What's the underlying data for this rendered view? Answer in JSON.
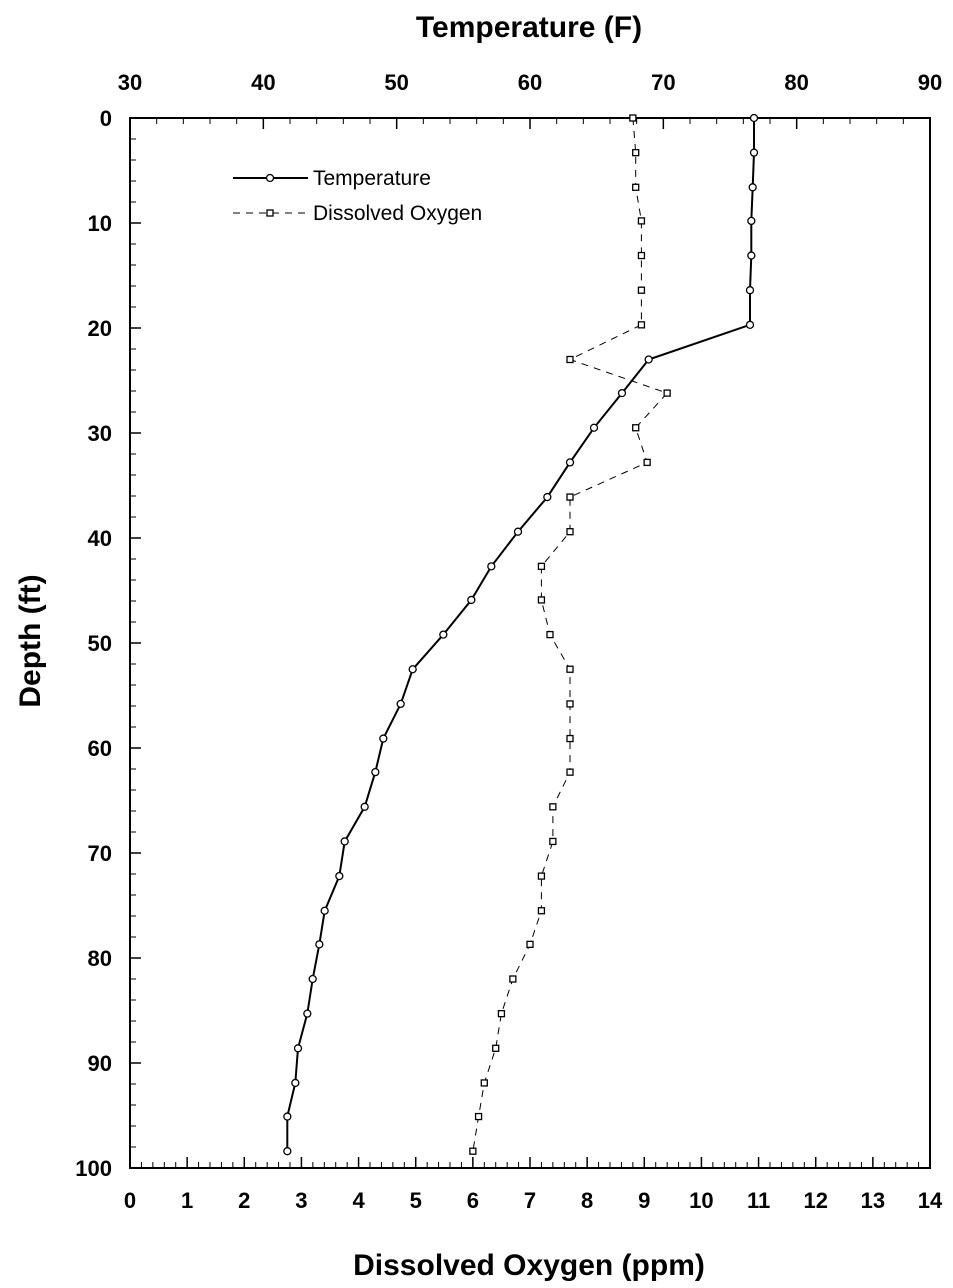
{
  "chart_data": {
    "type": "line",
    "top_axis": {
      "label": "Temperature (F)",
      "range": [
        30,
        90
      ],
      "ticks": [
        "30",
        "40",
        "50",
        "60",
        "70",
        "80",
        "90"
      ]
    },
    "bottom_axis": {
      "label": "Dissolved Oxygen (ppm)",
      "range": [
        0,
        14
      ],
      "ticks": [
        "0",
        "1",
        "2",
        "3",
        "4",
        "5",
        "6",
        "7",
        "8",
        "9",
        "10",
        "11",
        "12",
        "13",
        "14"
      ]
    },
    "y_axis": {
      "label": "Depth (ft)",
      "range": [
        0,
        100
      ],
      "inverted": true,
      "ticks": [
        "0",
        "10",
        "20",
        "30",
        "40",
        "50",
        "60",
        "70",
        "80",
        "90",
        "100"
      ]
    },
    "legend": {
      "placement": "top-left",
      "entries": [
        "Temperature",
        "Dissolved Oxygen"
      ]
    },
    "series": [
      {
        "name": "Temperature",
        "axis": "top",
        "style": "solid-circle",
        "points": [
          [
            76.8,
            0
          ],
          [
            76.8,
            3.3
          ],
          [
            76.7,
            6.6
          ],
          [
            76.6,
            9.8
          ],
          [
            76.6,
            13.1
          ],
          [
            76.5,
            16.4
          ],
          [
            76.5,
            19.7
          ],
          [
            68.9,
            23.0
          ],
          [
            66.9,
            26.2
          ],
          [
            64.8,
            29.5
          ],
          [
            63.0,
            32.8
          ],
          [
            61.3,
            36.1
          ],
          [
            59.1,
            39.4
          ],
          [
            57.1,
            42.7
          ],
          [
            55.6,
            45.9
          ],
          [
            53.5,
            49.2
          ],
          [
            51.2,
            52.5
          ],
          [
            50.3,
            55.8
          ],
          [
            49.0,
            59.1
          ],
          [
            48.4,
            62.3
          ],
          [
            47.6,
            65.6
          ],
          [
            46.1,
            68.9
          ],
          [
            45.7,
            72.2
          ],
          [
            44.6,
            75.5
          ],
          [
            44.2,
            78.7
          ],
          [
            43.7,
            82.0
          ],
          [
            43.3,
            85.3
          ],
          [
            42.6,
            88.6
          ],
          [
            42.4,
            91.9
          ],
          [
            41.8,
            95.1
          ],
          [
            41.8,
            98.4
          ]
        ]
      },
      {
        "name": "Dissolved Oxygen",
        "axis": "bottom",
        "style": "dashed-square",
        "points": [
          [
            8.8,
            0
          ],
          [
            8.85,
            3.3
          ],
          [
            8.85,
            6.6
          ],
          [
            8.95,
            9.8
          ],
          [
            8.95,
            13.1
          ],
          [
            8.95,
            16.4
          ],
          [
            8.95,
            19.7
          ],
          [
            7.7,
            23.0
          ],
          [
            9.4,
            26.2
          ],
          [
            8.85,
            29.5
          ],
          [
            9.05,
            32.8
          ],
          [
            7.7,
            36.1
          ],
          [
            7.7,
            39.4
          ],
          [
            7.2,
            42.7
          ],
          [
            7.2,
            45.9
          ],
          [
            7.35,
            49.2
          ],
          [
            7.7,
            52.5
          ],
          [
            7.7,
            55.8
          ],
          [
            7.7,
            59.1
          ],
          [
            7.7,
            62.3
          ],
          [
            7.4,
            65.6
          ],
          [
            7.4,
            68.9
          ],
          [
            7.2,
            72.2
          ],
          [
            7.2,
            75.5
          ],
          [
            7.0,
            78.7
          ],
          [
            6.7,
            82.0
          ],
          [
            6.5,
            85.3
          ],
          [
            6.4,
            88.6
          ],
          [
            6.2,
            91.9
          ],
          [
            6.1,
            95.1
          ],
          [
            6.0,
            98.4
          ]
        ]
      }
    ]
  }
}
